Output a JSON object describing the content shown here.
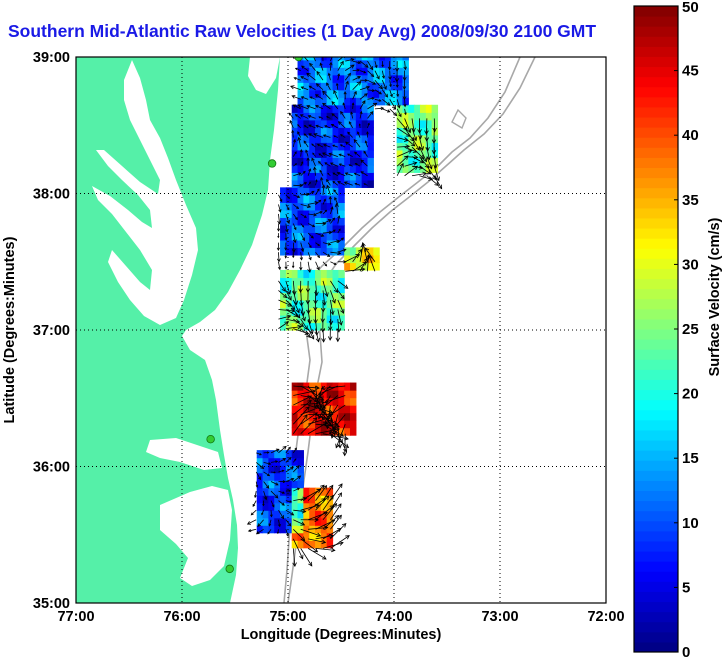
{
  "title": "Southern Mid-Atlantic Raw Velocities (1 Day Avg) 2008/09/30 2100 GMT",
  "map": {
    "xlabel": "Longitude (Degrees:Minutes)",
    "ylabel": "Latitude (Degrees:Minutes)",
    "xlim": [
      -77,
      -72
    ],
    "ylim": [
      35,
      39
    ],
    "x_ticks": [
      {
        "value": -77,
        "label": "77:00"
      },
      {
        "value": -76,
        "label": "76:00"
      },
      {
        "value": -75,
        "label": "75:00"
      },
      {
        "value": -74,
        "label": "74:00"
      },
      {
        "value": -73,
        "label": "73:00"
      },
      {
        "value": -72,
        "label": "72:00"
      }
    ],
    "y_ticks": [
      {
        "value": 35,
        "label": "35:00"
      },
      {
        "value": 36,
        "label": "36:00"
      },
      {
        "value": 37,
        "label": "37:00"
      },
      {
        "value": 38,
        "label": "38:00"
      },
      {
        "value": 39,
        "label": "39:00"
      }
    ],
    "grid": "dotted",
    "colors": {
      "land": "#55f0a8",
      "water": "#ffffff",
      "bathymetry": "#a8a8a8",
      "arrows": "#000000",
      "site_markers": "#33cc33"
    },
    "radar_sites": [
      {
        "lon": -74.9,
        "lat": 39.0
      },
      {
        "lon": -75.15,
        "lat": 38.22
      },
      {
        "lon": -75.73,
        "lat": 36.2
      },
      {
        "lon": -75.55,
        "lat": 35.25
      }
    ]
  },
  "colorbar": {
    "label": "Surface Velocity (cm/s)",
    "min": 0,
    "max": 50,
    "ticks": [
      {
        "value": 0,
        "label": "0"
      },
      {
        "value": 5,
        "label": "5"
      },
      {
        "value": 10,
        "label": "10"
      },
      {
        "value": 15,
        "label": "15"
      },
      {
        "value": 20,
        "label": "20"
      },
      {
        "value": 25,
        "label": "25"
      },
      {
        "value": 30,
        "label": "30"
      },
      {
        "value": 35,
        "label": "35"
      },
      {
        "value": 40,
        "label": "40"
      },
      {
        "value": 45,
        "label": "45"
      },
      {
        "value": 50,
        "label": "50"
      }
    ],
    "colormap": "jet"
  },
  "chart_data": {
    "type": "heatmap",
    "title": "Southern Mid-Atlantic Raw Velocities (1 Day Avg) 2008/09/30 2100 GMT",
    "xlabel": "Longitude (Degrees:Minutes)",
    "ylabel": "Latitude (Degrees:Minutes)",
    "value_label": "Surface Velocity (cm/s)",
    "value_range": [
      0,
      50
    ],
    "xlim": [
      -77,
      -72
    ],
    "ylim": [
      35,
      39
    ],
    "regions": [
      {
        "lon_range": [
          -74.95,
          -73.9
        ],
        "lat_range": [
          38.6,
          39.0
        ],
        "typical_speed": 12
      },
      {
        "lon_range": [
          -75.0,
          -74.2
        ],
        "lat_range": [
          38.0,
          38.6
        ],
        "typical_speed": 8
      },
      {
        "lon_range": [
          -74.0,
          -73.6
        ],
        "lat_range": [
          38.1,
          38.6
        ],
        "typical_speed": 24
      },
      {
        "lon_range": [
          -75.1,
          -74.5
        ],
        "lat_range": [
          37.5,
          38.0
        ],
        "typical_speed": 10
      },
      {
        "lon_range": [
          -74.5,
          -74.15
        ],
        "lat_range": [
          37.4,
          37.55
        ],
        "typical_speed": 30
      },
      {
        "lon_range": [
          -75.1,
          -74.5
        ],
        "lat_range": [
          36.95,
          37.4
        ],
        "typical_speed": 23
      },
      {
        "lon_range": [
          -75.0,
          -74.4
        ],
        "lat_range": [
          36.2,
          36.6
        ],
        "typical_speed": 44
      },
      {
        "lon_range": [
          -75.3,
          -74.9
        ],
        "lat_range": [
          35.5,
          36.1
        ],
        "typical_speed": 9
      },
      {
        "lon_range": [
          -75.0,
          -74.6
        ],
        "lat_range": [
          35.4,
          35.8
        ],
        "typical_speed": 38
      }
    ]
  }
}
